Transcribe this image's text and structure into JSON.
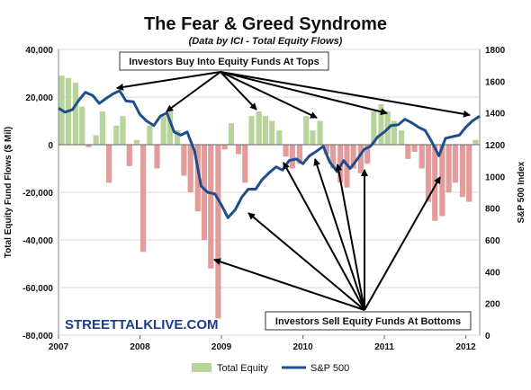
{
  "chart_data": {
    "type": "bar+line",
    "title": "The Fear & Greed Syndrome",
    "subtitle": "(Data by ICI - Total Equity Flows)",
    "ylabel_left": "Total Equity Fund Flows ($ Mil)",
    "ylabel_right": "S&P 500 Index",
    "ylim_left": [
      -80000,
      40000
    ],
    "ylim_right": [
      0,
      1800
    ],
    "left_ticks": [
      "40,000",
      "20,000",
      "0",
      "-20,000",
      "-40,000",
      "-60,000",
      "-80,000"
    ],
    "right_ticks": [
      "1800",
      "1600",
      "1400",
      "1200",
      "1000",
      "800",
      "600",
      "400",
      "200",
      "0"
    ],
    "x_range": [
      2007.0,
      2012.17
    ],
    "x_ticks": [
      "2007",
      "2008",
      "2009",
      "2010",
      "2011",
      "2012"
    ],
    "grid": true,
    "legend_position": "bottom",
    "series": [
      {
        "name": "Total Equity",
        "kind": "bar",
        "color_pos": "#b9d49a",
        "color_neg": "#e39c9c",
        "x": [
          2007.04,
          2007.12,
          2007.21,
          2007.29,
          2007.37,
          2007.46,
          2007.54,
          2007.62,
          2007.71,
          2007.79,
          2007.87,
          2007.96,
          2008.04,
          2008.12,
          2008.21,
          2008.29,
          2008.37,
          2008.46,
          2008.54,
          2008.62,
          2008.71,
          2008.79,
          2008.87,
          2008.96,
          2009.04,
          2009.12,
          2009.21,
          2009.29,
          2009.37,
          2009.46,
          2009.54,
          2009.62,
          2009.71,
          2009.79,
          2009.87,
          2009.96,
          2010.04,
          2010.12,
          2010.21,
          2010.29,
          2010.37,
          2010.46,
          2010.54,
          2010.62,
          2010.71,
          2010.79,
          2010.87,
          2010.96,
          2011.04,
          2011.12,
          2011.21,
          2011.29,
          2011.37,
          2011.46,
          2011.54,
          2011.62,
          2011.71,
          2011.79,
          2011.87,
          2011.96,
          2012.04,
          2012.12
        ],
        "values": [
          29000,
          28000,
          26000,
          16000,
          -1000,
          4000,
          14000,
          -16000,
          8000,
          12000,
          -9000,
          2000,
          -45000,
          8000,
          -10000,
          12000,
          14000,
          6000,
          -13000,
          -20000,
          -28000,
          -40000,
          -52000,
          -73000,
          -2000,
          9000,
          -4000,
          -16000,
          12000,
          14000,
          12000,
          10000,
          6000,
          -5000,
          -10000,
          -8000,
          12000,
          6000,
          10000,
          -4000,
          -10000,
          -16000,
          -18000,
          -10000,
          -12000,
          -8000,
          14000,
          17000,
          14000,
          10000,
          6000,
          -6000,
          -3000,
          -10000,
          -24000,
          -32000,
          -30000,
          -20000,
          -16000,
          -22000,
          -24000,
          2000
        ]
      },
      {
        "name": "S&P 500",
        "kind": "line",
        "color": "#1f4e8c",
        "x": [
          2007.0,
          2007.08,
          2007.17,
          2007.25,
          2007.33,
          2007.42,
          2007.5,
          2007.58,
          2007.67,
          2007.75,
          2007.83,
          2007.92,
          2008.0,
          2008.08,
          2008.17,
          2008.25,
          2008.33,
          2008.42,
          2008.5,
          2008.58,
          2008.67,
          2008.75,
          2008.83,
          2008.92,
          2009.0,
          2009.08,
          2009.17,
          2009.25,
          2009.33,
          2009.42,
          2009.5,
          2009.58,
          2009.67,
          2009.75,
          2009.83,
          2009.92,
          2010.0,
          2010.08,
          2010.17,
          2010.25,
          2010.33,
          2010.42,
          2010.5,
          2010.58,
          2010.67,
          2010.75,
          2010.83,
          2010.92,
          2011.0,
          2011.08,
          2011.17,
          2011.25,
          2011.33,
          2011.42,
          2011.5,
          2011.58,
          2011.67,
          2011.75,
          2011.83,
          2011.92,
          2012.0,
          2012.08,
          2012.17
        ],
        "values": [
          1430,
          1405,
          1420,
          1480,
          1530,
          1510,
          1460,
          1490,
          1520,
          1540,
          1475,
          1470,
          1390,
          1350,
          1320,
          1380,
          1400,
          1280,
          1260,
          1280,
          1160,
          940,
          900,
          890,
          820,
          740,
          790,
          870,
          920,
          920,
          980,
          1020,
          1060,
          1040,
          1100,
          1110,
          1080,
          1130,
          1160,
          1190,
          1090,
          1030,
          1100,
          1050,
          1110,
          1170,
          1190,
          1250,
          1280,
          1320,
          1325,
          1360,
          1340,
          1310,
          1290,
          1220,
          1130,
          1240,
          1250,
          1260,
          1310,
          1350,
          1380
        ]
      }
    ],
    "annotations": [
      "Investors Buy Into Equity Funds At Tops",
      "Investors Sell Equity Funds At Bottoms",
      "STREETTALKLIVE.COM"
    ]
  }
}
